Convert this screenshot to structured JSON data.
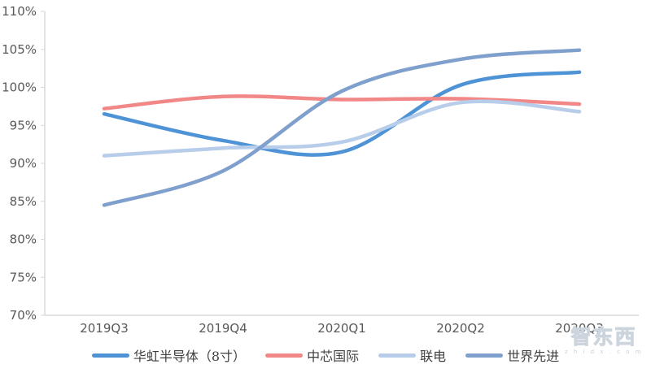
{
  "chart_data": {
    "type": "line",
    "title": "",
    "xlabel": "",
    "ylabel": "",
    "categories": [
      "2019Q3",
      "2019Q4",
      "2020Q1",
      "2020Q2",
      "2020Q3"
    ],
    "series": [
      {
        "name": "华虹半导体（8寸）",
        "color": "#4E93D6",
        "values": [
          96.5,
          93.0,
          91.5,
          100.3,
          102.0
        ]
      },
      {
        "name": "中芯国际",
        "color": "#F28787",
        "values": [
          97.2,
          98.8,
          98.4,
          98.5,
          97.8
        ]
      },
      {
        "name": "联电",
        "color": "#B8CDE9",
        "values": [
          91.0,
          92.0,
          92.8,
          98.0,
          96.8
        ]
      },
      {
        "name": "世界先进",
        "color": "#7FA0CD",
        "values": [
          84.5,
          89.0,
          99.5,
          103.7,
          104.9
        ]
      }
    ],
    "ylim": [
      70,
      110
    ],
    "y_tick_step": 5,
    "y_tick_labels": [
      "70%",
      "75%",
      "80%",
      "85%",
      "90%",
      "95%",
      "100%",
      "105%",
      "110%"
    ],
    "y_suffix": "%",
    "grid": false,
    "smooth": true,
    "legend_position": "bottom",
    "line_width": 4.5,
    "axis_line_color": "#D9D9D9",
    "axis_label_color": "#595959"
  },
  "watermark": {
    "brand": "智东西",
    "site": "z h i d x . c o m"
  }
}
